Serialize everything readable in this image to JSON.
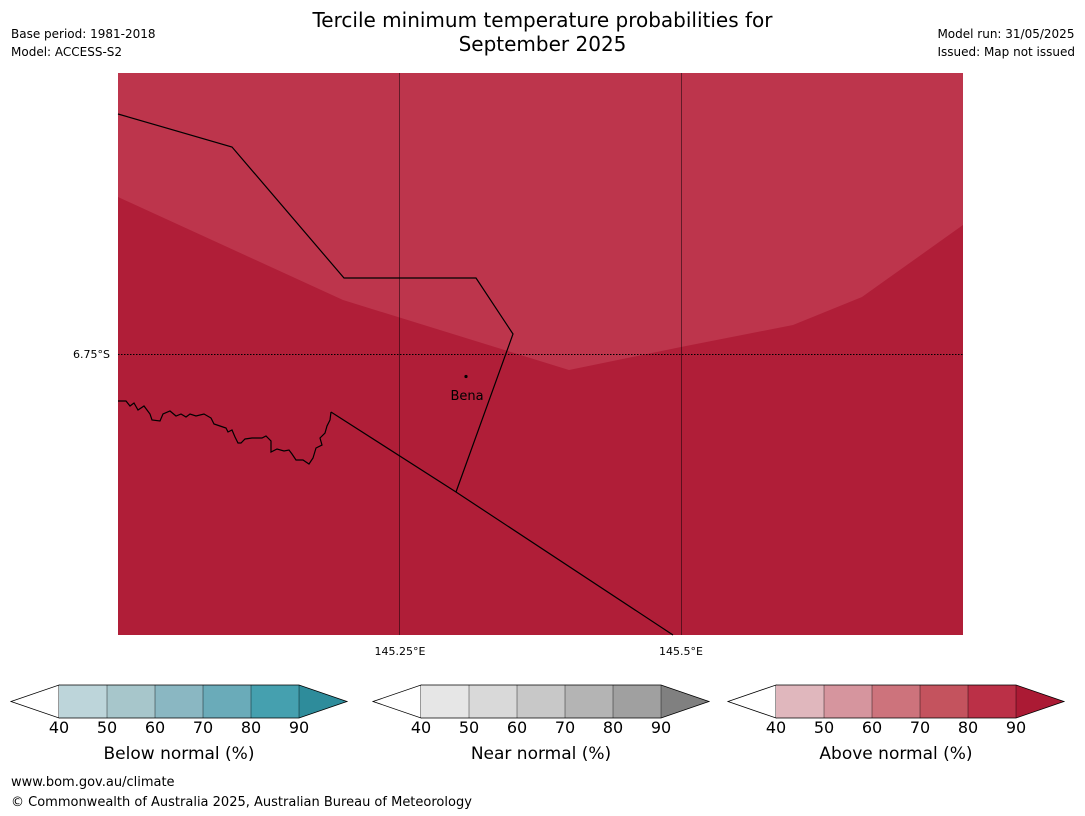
{
  "header": {
    "title_line1": "Tercile minimum temperature probabilities for",
    "title_line2": "September 2025",
    "base_period": "Base period: 1981-2018",
    "model": "Model: ACCESS-S2",
    "model_run": "Model run: 31/05/2025",
    "issued": "Issued: Map not issued"
  },
  "map": {
    "lat_label": "6.75°S",
    "lon_labels": [
      "145.25°E",
      "145.5°E"
    ],
    "place_label": "Bena",
    "colors": {
      "above_70_80": "#bd354c",
      "above_80_90": "#b01e38",
      "below_40": "#ffffff",
      "below_40_50": "#bdd5da",
      "below_50_60": "#a7c6cb",
      "below_60_70": "#8ab7c2",
      "below_70_80": "#6aabb9",
      "below_80_90": "#45a0af",
      "below_90": "#2e8c9b",
      "near_40_50": "#e6e6e6",
      "near_50_60": "#d9d9d9",
      "near_60_70": "#c8c8c8",
      "near_70_80": "#b4b4b4",
      "near_80_90": "#a0a0a0",
      "near_90": "#808080",
      "above_40_50": "#e0b7bd",
      "above_50_60": "#d6959e",
      "above_60_70": "#cd737c",
      "above_70_80_bar": "#c4535e",
      "above_80_90_bar": "#bb3047",
      "above_90": "#ab1a34"
    }
  },
  "colorbars": {
    "ticks": [
      "40",
      "50",
      "60",
      "70",
      "80",
      "90"
    ],
    "below_label": "Below normal (%)",
    "near_label": "Near normal (%)",
    "above_label": "Above normal (%)"
  },
  "footer": {
    "url": "www.bom.gov.au/climate",
    "copyright": "© Commonwealth of Australia 2025, Australian Bureau of Meteorology"
  }
}
